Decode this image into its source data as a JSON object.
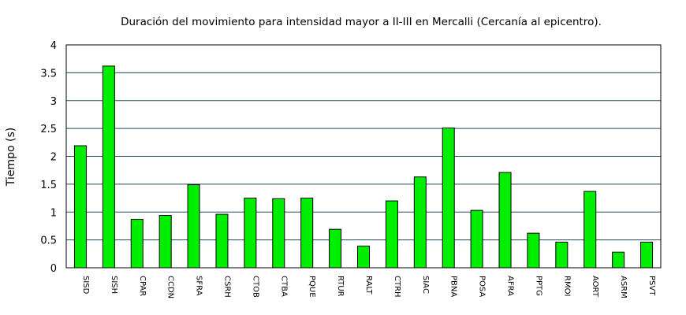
{
  "chart_data": {
    "type": "bar",
    "title": "Duración del movimiento para intensidad mayor a II-III en Mercalli (Cercanía al epicentro).",
    "xlabel": "",
    "ylabel": "Tiempo (s)",
    "ylim": [
      0,
      4
    ],
    "yticks": [
      "0",
      "0.5",
      "1",
      "1.5",
      "2",
      "2.5",
      "3",
      "3.5",
      "4"
    ],
    "grid": true,
    "legend": "none",
    "bar_color": "#00ee00",
    "grid_color": "#1f4a5a",
    "categories": [
      "SISD",
      "SISH",
      "CPAR",
      "CCDN",
      "SFRA",
      "CSRH",
      "CTOB",
      "CTBA",
      "PQUE",
      "RTUR",
      "RALT",
      "CTRH",
      "SIAC",
      "PBNA",
      "POSA",
      "AFRA",
      "PPTG",
      "RMOI",
      "AORT",
      "ASRM",
      "PSVT"
    ],
    "values": [
      2.19,
      3.62,
      0.87,
      0.94,
      1.49,
      0.96,
      1.25,
      1.24,
      1.25,
      0.69,
      0.39,
      1.2,
      1.63,
      2.51,
      1.03,
      1.71,
      0.62,
      0.46,
      1.37,
      0.28,
      0.46
    ]
  }
}
